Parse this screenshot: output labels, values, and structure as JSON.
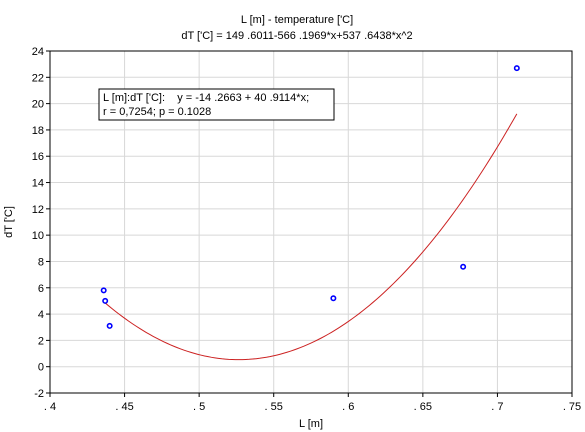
{
  "chart_data": {
    "type": "scatter",
    "title": "L [m] - temperature ['C]",
    "subtitle": "dT ['C] = 149 .6011-566 .1969*x+537 .6438*x^2",
    "xlabel": "L [m]",
    "ylabel": "dT ['C]",
    "xlim": [
      0.4,
      0.75
    ],
    "ylim": [
      -2,
      24
    ],
    "xticks": [
      0.4,
      0.45,
      0.5,
      0.55,
      0.6,
      0.65,
      0.7,
      0.75
    ],
    "xtick_labels": [
      ". 4",
      ". 45",
      ". 5",
      ". 55",
      ". 6",
      ". 65",
      ". 7",
      ". 75"
    ],
    "yticks": [
      -2,
      0,
      2,
      4,
      6,
      8,
      10,
      12,
      14,
      16,
      18,
      20,
      22,
      24
    ],
    "ytick_labels": [
      "-2",
      "0",
      "2",
      "4",
      "6",
      "8",
      "10",
      "12",
      "14",
      "16",
      "18",
      "20",
      "22",
      "24"
    ],
    "grid": true,
    "points": {
      "x": [
        0.436,
        0.437,
        0.44,
        0.59,
        0.677,
        0.713
      ],
      "y": [
        5.8,
        5.0,
        3.1,
        5.2,
        7.6,
        22.7
      ],
      "color": "#0000ff"
    },
    "fit_curve": {
      "kind": "quadratic",
      "coefficients": [
        149.6011,
        -566.1969,
        537.6438
      ],
      "x_range": [
        0.437,
        0.713
      ],
      "color": "#cc2222"
    },
    "annotation": {
      "line1": "L [m]:dT ['C]:    y = -14 .2663 + 40 .9114*x;",
      "line2": "r = 0,7254; p = 0.1028"
    }
  }
}
